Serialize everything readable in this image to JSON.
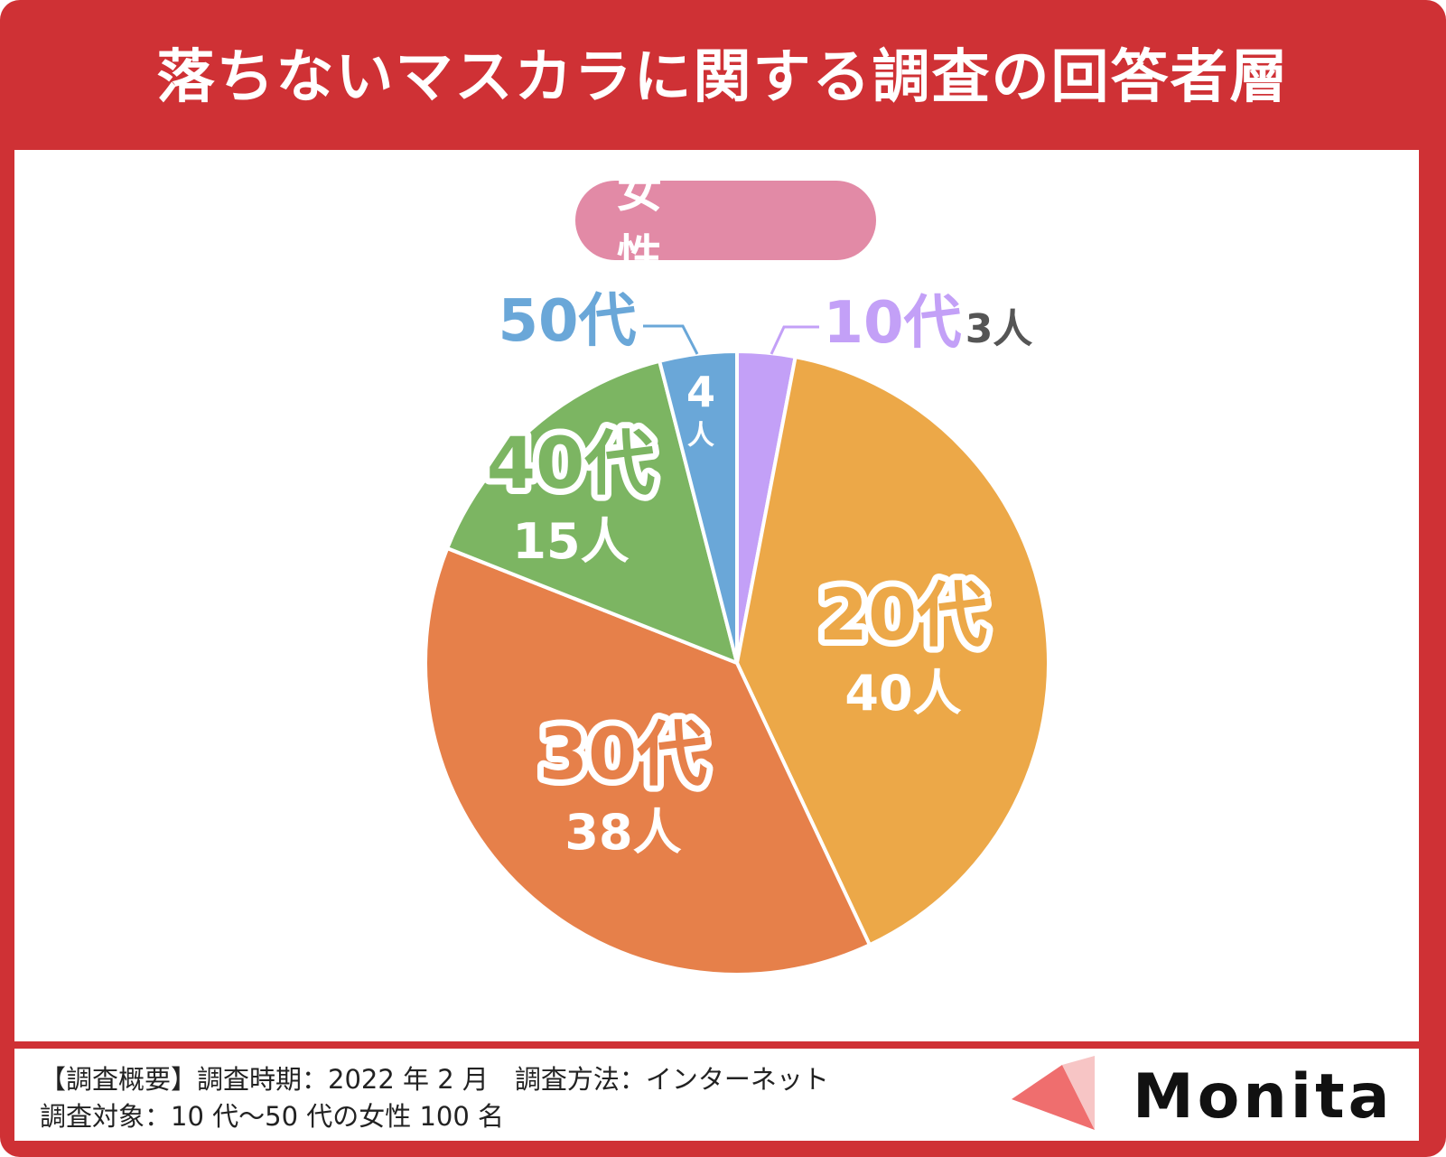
{
  "title": "落ちないマスカラに関する調査の回答者層",
  "badge": "女　性",
  "chart_data": {
    "type": "pie",
    "categories": [
      "10代",
      "20代",
      "30代",
      "40代",
      "50代"
    ],
    "values": [
      3,
      40,
      38,
      15,
      4
    ],
    "value_labels": [
      "3人",
      "40人",
      "38人",
      "15人",
      "4人"
    ],
    "unit": "人",
    "colors": [
      "#c3a0f7",
      "#eca848",
      "#e6804a",
      "#7cb562",
      "#6aa7d8"
    ]
  },
  "footer": {
    "line1": "【調査概要】調査時期：2022 年 2 月　調査方法：インターネット",
    "line2": "調査対象：10 代～50 代の女性 100 名"
  },
  "brand": {
    "name": "Monita",
    "icon": "brand-triangle-icon"
  },
  "colors": {
    "frame": "#cf3135",
    "badge": "#e28aa6",
    "brand_mark": "#ef6e6e"
  }
}
